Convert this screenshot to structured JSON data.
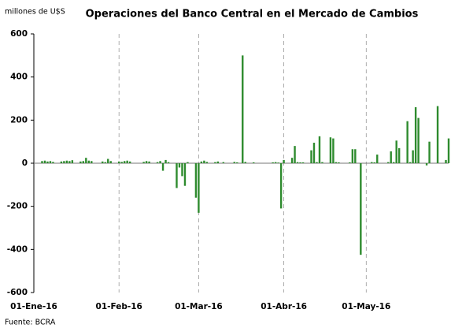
{
  "chart_data": {
    "type": "bar",
    "title": "Operaciones del Banco Central en el Mercado de Cambios",
    "y_label": "millones de U$S",
    "source": "Fuente: BCRA",
    "color": "#2e8b2e",
    "x": [
      "2016-01-04",
      "2016-01-05",
      "2016-01-06",
      "2016-01-07",
      "2016-01-08",
      "2016-01-11",
      "2016-01-12",
      "2016-01-13",
      "2016-01-14",
      "2016-01-15",
      "2016-01-18",
      "2016-01-19",
      "2016-01-20",
      "2016-01-21",
      "2016-01-22",
      "2016-01-26",
      "2016-01-27",
      "2016-01-28",
      "2016-01-29",
      "2016-02-01",
      "2016-02-02",
      "2016-02-03",
      "2016-02-04",
      "2016-02-05",
      "2016-02-10",
      "2016-02-11",
      "2016-02-12",
      "2016-02-15",
      "2016-02-16",
      "2016-02-17",
      "2016-02-18",
      "2016-02-19",
      "2016-02-22",
      "2016-02-23",
      "2016-02-24",
      "2016-02-25",
      "2016-02-26",
      "2016-02-29",
      "2016-03-01",
      "2016-03-02",
      "2016-03-03",
      "2016-03-04",
      "2016-03-07",
      "2016-03-08",
      "2016-03-10",
      "2016-03-14",
      "2016-03-15",
      "2016-03-17",
      "2016-03-18",
      "2016-03-21",
      "2016-03-28",
      "2016-03-29",
      "2016-03-30",
      "2016-03-31",
      "2016-04-01",
      "2016-04-04",
      "2016-04-05",
      "2016-04-06",
      "2016-04-07",
      "2016-04-08",
      "2016-04-11",
      "2016-04-12",
      "2016-04-13",
      "2016-04-14",
      "2016-04-15",
      "2016-04-18",
      "2016-04-19",
      "2016-04-20",
      "2016-04-21",
      "2016-04-25",
      "2016-04-26",
      "2016-04-27",
      "2016-04-29",
      "2016-05-03",
      "2016-05-04",
      "2016-05-05",
      "2016-05-09",
      "2016-05-10",
      "2016-05-11",
      "2016-05-12",
      "2016-05-13",
      "2016-05-16",
      "2016-05-17",
      "2016-05-18",
      "2016-05-19",
      "2016-05-20",
      "2016-05-23",
      "2016-05-24",
      "2016-05-27",
      "2016-05-30",
      "2016-05-31"
    ],
    "values": [
      10,
      12,
      8,
      10,
      6,
      8,
      10,
      12,
      10,
      14,
      8,
      10,
      25,
      12,
      10,
      8,
      5,
      20,
      10,
      8,
      6,
      10,
      12,
      8,
      6,
      10,
      8,
      5,
      10,
      -35,
      15,
      5,
      -115,
      -20,
      -60,
      -105,
      5,
      -160,
      -230,
      8,
      12,
      6,
      5,
      8,
      5,
      6,
      4,
      500,
      6,
      4,
      4,
      5,
      3,
      -210,
      15,
      25,
      80,
      5,
      4,
      4,
      60,
      95,
      5,
      125,
      5,
      120,
      115,
      5,
      4,
      4,
      65,
      65,
      -425,
      5,
      4,
      40,
      5,
      55,
      5,
      105,
      70,
      195,
      5,
      60,
      260,
      210,
      -10,
      100,
      265,
      15,
      115
    ],
    "xlim": [
      "2016-01-01",
      "2016-05-31"
    ],
    "xticks": [
      {
        "value": "2016-01-01",
        "label": "01-Ene-16"
      },
      {
        "value": "2016-02-01",
        "label": "01-Feb-16"
      },
      {
        "value": "2016-03-01",
        "label": "01-Mar-16"
      },
      {
        "value": "2016-04-01",
        "label": "01-Abr-16"
      },
      {
        "value": "2016-05-01",
        "label": "01-May-16"
      }
    ],
    "ylim": [
      -600,
      600
    ],
    "yticks": [
      -600,
      -400,
      -200,
      0,
      200,
      400,
      600
    ],
    "grid": true
  }
}
